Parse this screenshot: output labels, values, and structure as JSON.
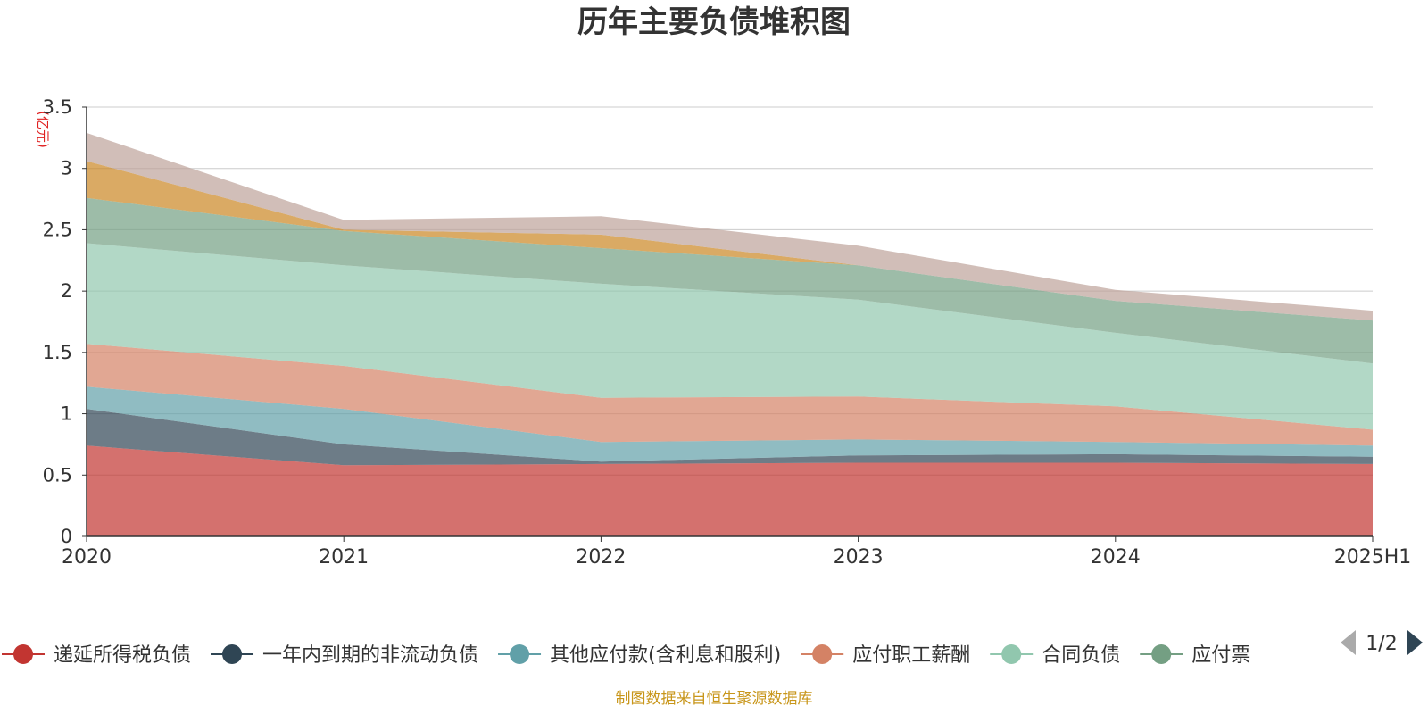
{
  "chart_data": {
    "type": "area",
    "stacked": true,
    "title": "历年主要负债堆积图",
    "unit": "(亿元)",
    "x": [
      "2020",
      "2021",
      "2022",
      "2023",
      "2024",
      "2025H1"
    ],
    "ylim": [
      0,
      3.5
    ],
    "yticks": [
      "0",
      "0.5",
      "1",
      "1.5",
      "2",
      "2.5",
      "3",
      "3.5"
    ],
    "grid": true,
    "series": [
      {
        "name": "递延所得税负债",
        "color": "#c23531",
        "values": [
          0.74,
          0.58,
          0.59,
          0.6,
          0.6,
          0.59
        ]
      },
      {
        "name": "一年内到期的非流动负债",
        "color": "#2f4554",
        "values": [
          0.3,
          0.17,
          0.02,
          0.06,
          0.07,
          0.06
        ]
      },
      {
        "name": "其他应付款(含利息和股利)",
        "color": "#61a0a8",
        "values": [
          0.18,
          0.29,
          0.16,
          0.13,
          0.1,
          0.09
        ]
      },
      {
        "name": "应付职工薪酬",
        "color": "#d48265",
        "values": [
          0.35,
          0.35,
          0.36,
          0.35,
          0.29,
          0.13
        ]
      },
      {
        "name": "合同负债",
        "color": "#91c7ae",
        "values": [
          0.82,
          0.82,
          0.93,
          0.79,
          0.6,
          0.54
        ]
      },
      {
        "name": "应付票据",
        "color": "#749f83",
        "values": [
          0.37,
          0.28,
          0.29,
          0.28,
          0.26,
          0.35
        ]
      },
      {
        "name": "",
        "color": "#ca8622",
        "values": [
          0.3,
          0.01,
          0.11,
          0.0,
          0.0,
          0.0
        ]
      },
      {
        "name": "",
        "color": "#bda29a",
        "values": [
          0.23,
          0.08,
          0.15,
          0.16,
          0.09,
          0.08
        ]
      }
    ],
    "legend_position": "bottom"
  },
  "legend": {
    "visible_items": [
      {
        "label": "递延所得税负债",
        "color": "#c23531"
      },
      {
        "label": "一年内到期的非流动负债",
        "color": "#2f4554"
      },
      {
        "label": "其他应付款(含利息和股利)",
        "color": "#61a0a8"
      },
      {
        "label": "应付职工薪酬",
        "color": "#d48265"
      },
      {
        "label": "合同负债",
        "color": "#91c7ae"
      },
      {
        "label": "应付票",
        "color": "#749f83"
      }
    ],
    "page_indicator": "1/2"
  },
  "source_note": "制图数据来自恒生聚源数据库"
}
